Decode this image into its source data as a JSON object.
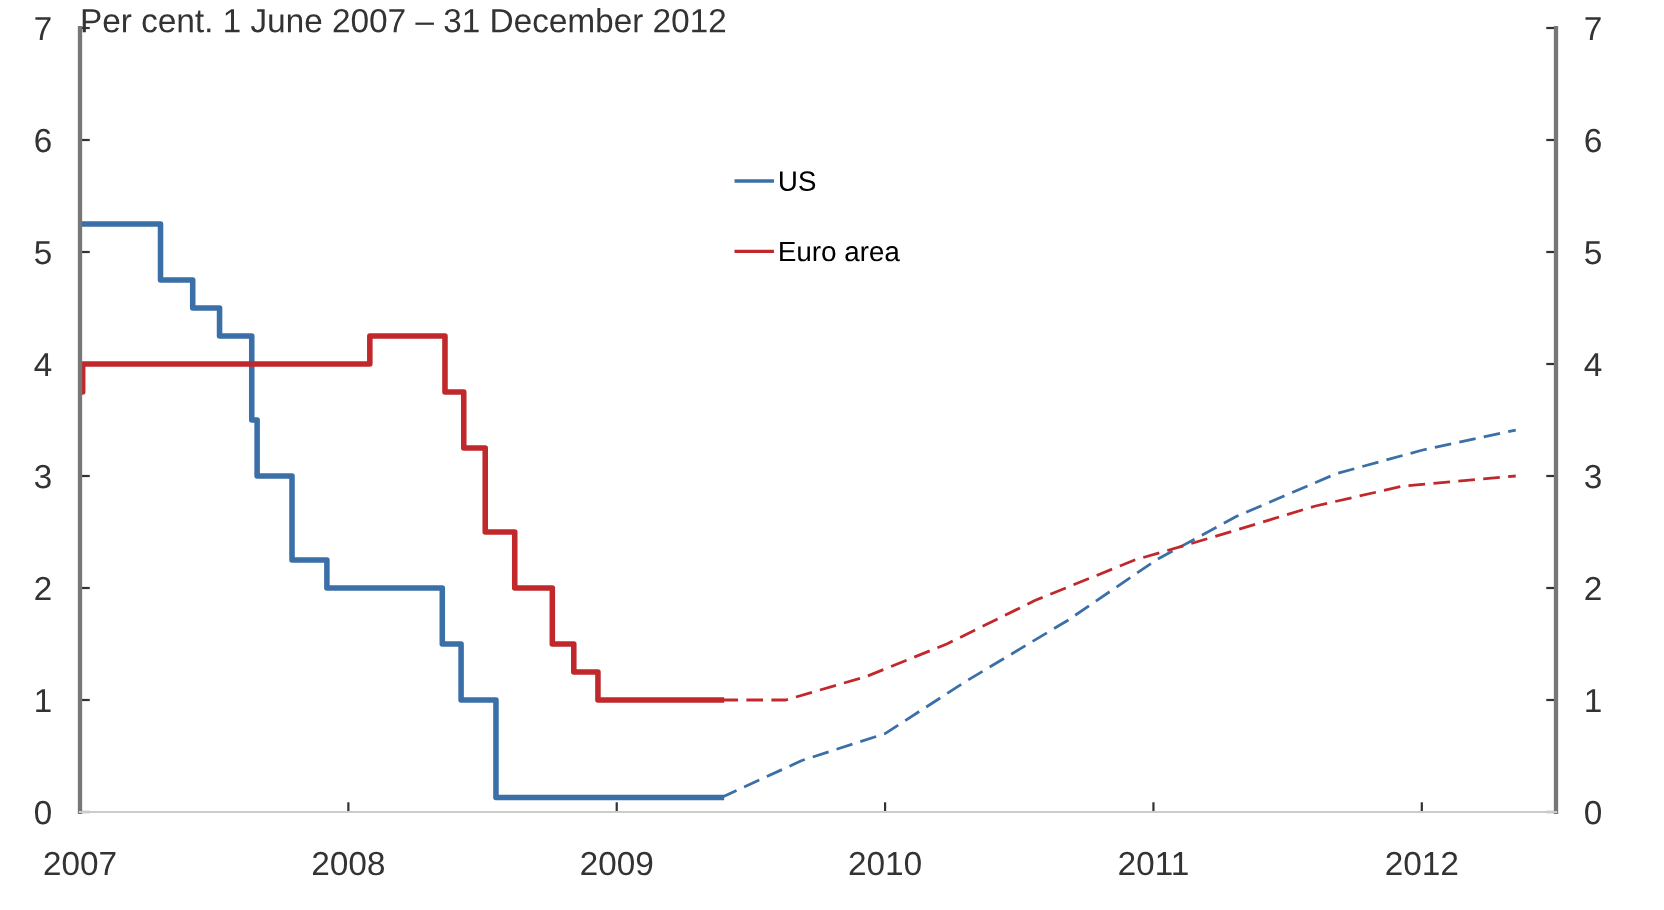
{
  "chart_data": {
    "type": "line",
    "title": "Per cent. 1 June 2007 – 31 December 2012",
    "xlim": [
      2007,
      2012.5
    ],
    "xticks": [
      2007,
      2008,
      2009,
      2010,
      2011,
      2012
    ],
    "ylim": [
      0,
      7
    ],
    "yticks": [
      0,
      1,
      2,
      3,
      4,
      5,
      6,
      7
    ],
    "y2lim": [
      0,
      7
    ],
    "y2ticks": [
      0,
      1,
      2,
      3,
      4,
      5,
      6,
      7
    ],
    "grid": false,
    "legend": "top",
    "marker": "none",
    "series": [
      {
        "name": "US",
        "type": "step",
        "color": "#3b6fa8",
        "line_style": "solid",
        "x": [
          2007.0,
          2007.3,
          2007.42,
          2007.52,
          2007.64,
          2007.66,
          2007.79,
          2007.92,
          2008.35,
          2008.42,
          2008.55,
          2009.39
        ],
        "values": [
          5.25,
          4.75,
          4.5,
          4.25,
          3.5,
          3.0,
          2.25,
          2.0,
          1.5,
          1.0,
          0.13,
          0.13
        ]
      },
      {
        "name": "Euro area",
        "type": "step",
        "color": "#c0282b",
        "line_style": "solid",
        "x": [
          2007.0,
          2007.01,
          2008.08,
          2008.36,
          2008.43,
          2008.51,
          2008.62,
          2008.76,
          2008.84,
          2008.93,
          2009.39
        ],
        "values": [
          3.75,
          4.0,
          4.25,
          3.75,
          3.25,
          2.5,
          2.0,
          1.5,
          1.25,
          1.0,
          1.0
        ]
      },
      {
        "color": "#3b6fa8",
        "line_style": "dashed",
        "x": [
          2009.39,
          2009.69,
          2010.0,
          2010.31,
          2010.68,
          2011.01,
          2011.31,
          2011.68,
          2012.0,
          2012.35
        ],
        "values": [
          0.13,
          0.46,
          0.7,
          1.18,
          1.71,
          2.25,
          2.64,
          3.02,
          3.23,
          3.41
        ]
      },
      {
        "color": "#c0282b",
        "line_style": "dashed",
        "x": [
          2009.39,
          2009.63,
          2009.93,
          2010.23,
          2010.56,
          2010.93,
          2011.23,
          2011.6,
          2011.93,
          2012.35
        ],
        "values": [
          1.0,
          1.0,
          1.21,
          1.5,
          1.89,
          2.25,
          2.46,
          2.73,
          2.91,
          3.0
        ]
      }
    ]
  }
}
